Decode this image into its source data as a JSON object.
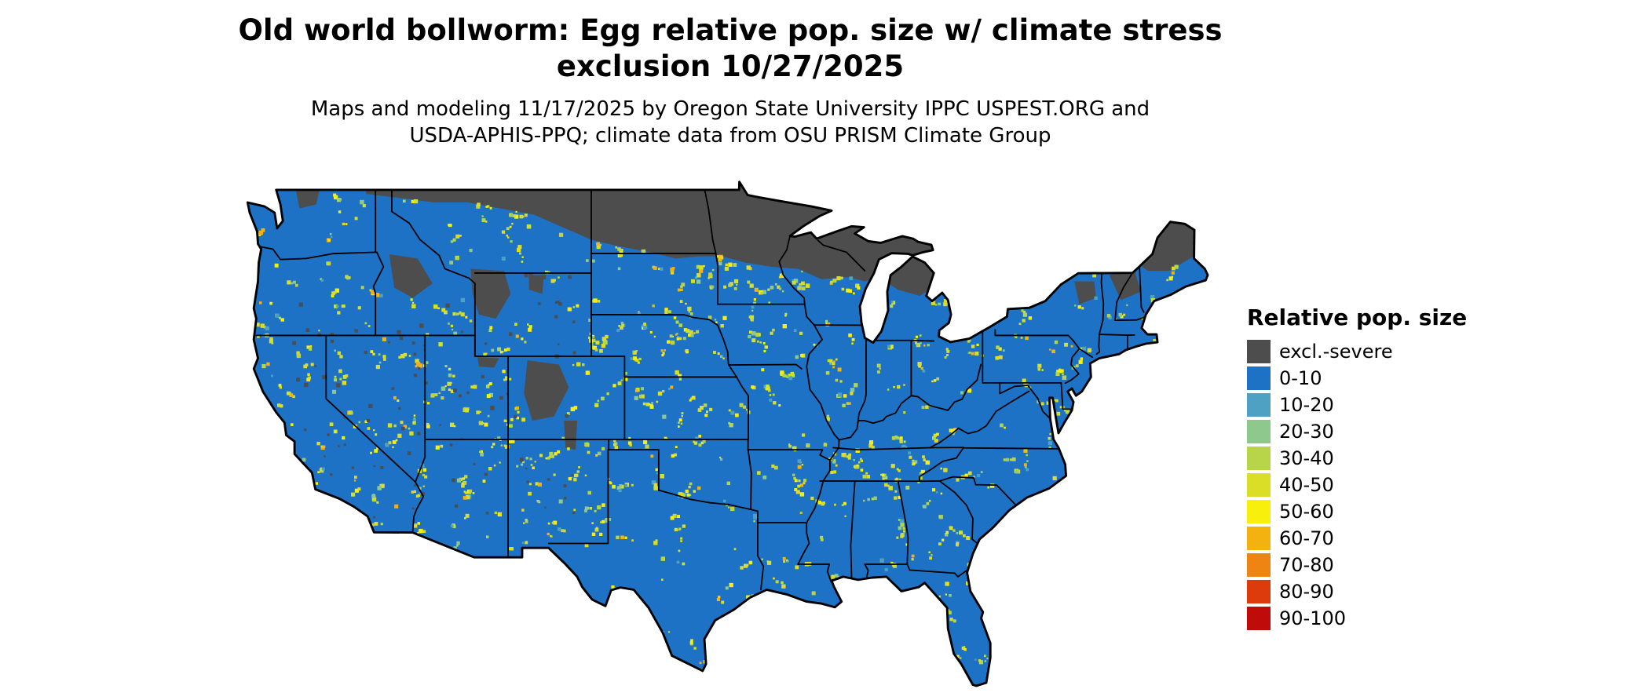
{
  "title": {
    "line1": "Old world bollworm: Egg relative pop. size w/ climate stress",
    "line2": "exclusion 10/27/2025"
  },
  "subtitle": {
    "line1": "Maps and modeling 11/17/2025 by Oregon State University IPPC USPEST.ORG and",
    "line2": "USDA-APHIS-PPQ; climate data from OSU PRISM Climate Group"
  },
  "legend": {
    "title": "Relative pop. size",
    "items": [
      {
        "label": "excl.-severe",
        "color": "#4d4d4d"
      },
      {
        "label": "0-10",
        "color": "#1d72c5"
      },
      {
        "label": "10-20",
        "color": "#4fa1c4"
      },
      {
        "label": "20-30",
        "color": "#8fc88d"
      },
      {
        "label": "30-40",
        "color": "#b8d54a"
      },
      {
        "label": "40-50",
        "color": "#dade26"
      },
      {
        "label": "50-60",
        "color": "#f8ef0c"
      },
      {
        "label": "60-70",
        "color": "#f4b211"
      },
      {
        "label": "70-80",
        "color": "#ee8411"
      },
      {
        "label": "80-90",
        "color": "#dd3b0c"
      },
      {
        "label": "90-100",
        "color": "#c00b0b"
      }
    ]
  },
  "map": {
    "region": "Contiguous United States",
    "base_color": "#1d72c5",
    "exclusion_color": "#4d4d4d",
    "background": "#ffffff",
    "border_color": "#000000"
  }
}
